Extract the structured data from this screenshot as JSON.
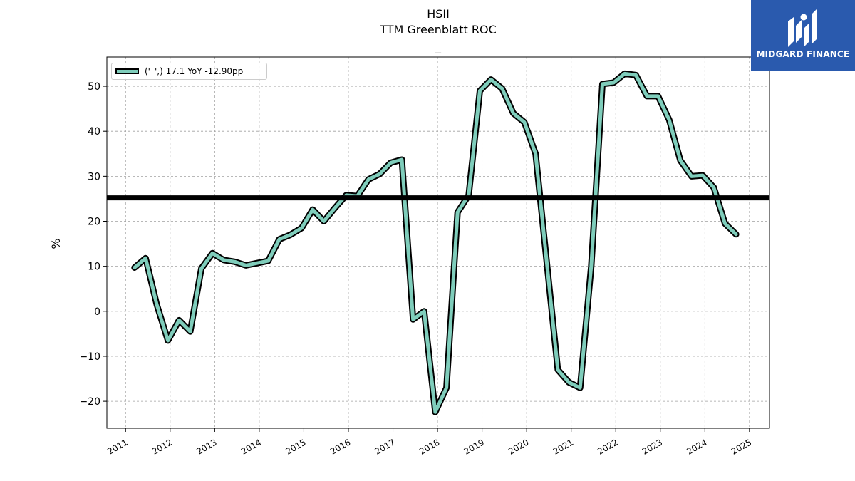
{
  "header": {
    "ticker": "HSII",
    "metric": "TTM Greenblatt ROC",
    "subtitle": "_"
  },
  "logo": {
    "name": "MIDGARD FINANCE",
    "background": "#2a5aae"
  },
  "chart_data": {
    "type": "line",
    "title": "HSII",
    "subtitle": "TTM Greenblatt ROC",
    "ylabel": "%",
    "xlabel": "",
    "xlim": [
      2010.58,
      2025.45
    ],
    "ylim": [
      -26,
      56.5
    ],
    "x_ticks": [
      "2011",
      "2012",
      "2013",
      "2014",
      "2015",
      "2016",
      "2017",
      "2018",
      "2019",
      "2020",
      "2021",
      "2022",
      "2023",
      "2024",
      "2025"
    ],
    "y_ticks": [
      -20,
      -10,
      0,
      10,
      20,
      30,
      40,
      50
    ],
    "grid": true,
    "legend_position": "top-left",
    "reference_line": {
      "value": 25.2,
      "color": "#000000"
    },
    "series": [
      {
        "name": "('_',) 17.1 YoY -12.90pp",
        "color": "#7fcdbb",
        "outline": "#000000",
        "x": [
          2011.2,
          2011.45,
          2011.7,
          2011.95,
          2012.2,
          2012.45,
          2012.7,
          2012.95,
          2013.2,
          2013.45,
          2013.7,
          2013.95,
          2014.2,
          2014.45,
          2014.7,
          2014.95,
          2015.2,
          2015.45,
          2015.7,
          2015.95,
          2016.2,
          2016.45,
          2016.7,
          2016.95,
          2017.2,
          2017.45,
          2017.7,
          2017.95,
          2018.2,
          2018.45,
          2018.7,
          2018.95,
          2019.2,
          2019.45,
          2019.7,
          2019.95,
          2020.2,
          2020.45,
          2020.7,
          2020.95,
          2021.2,
          2021.45,
          2021.7,
          2021.95,
          2022.2,
          2022.45,
          2022.7,
          2022.95,
          2023.2,
          2023.45,
          2023.7,
          2023.95,
          2024.2,
          2024.45,
          2024.7
        ],
        "y": [
          9.7,
          11.8,
          1.5,
          -6.5,
          -2.0,
          -4.5,
          9.5,
          12.9,
          11.4,
          11.0,
          10.2,
          10.7,
          11.2,
          16.0,
          17.0,
          18.5,
          22.6,
          20.0,
          23.0,
          25.8,
          25.6,
          29.3,
          30.5,
          33.0,
          33.7,
          -1.8,
          0.0,
          -22.4,
          -17.0,
          22.0,
          25.8,
          49.0,
          51.5,
          49.5,
          44.0,
          42.0,
          35.0,
          11.0,
          -13.0,
          -15.8,
          -17.0,
          10.0,
          50.5,
          50.8,
          52.8,
          52.5,
          47.8,
          47.8,
          42.5,
          33.5,
          30.0,
          30.2,
          27.5,
          19.5,
          17.1
        ]
      }
    ]
  }
}
